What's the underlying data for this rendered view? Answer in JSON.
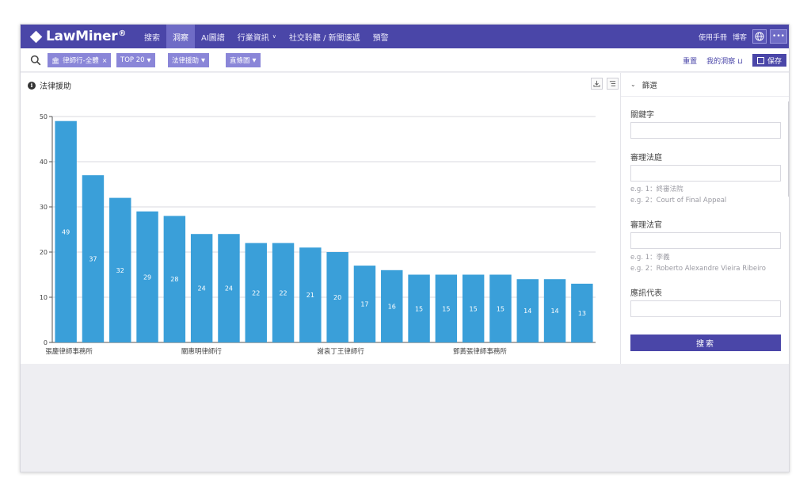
{
  "nav": {
    "brand": "LawMiner",
    "brand_mark": "®",
    "items": [
      {
        "label": "搜索",
        "active": false,
        "caret": false
      },
      {
        "label": "洞察",
        "active": true,
        "caret": false
      },
      {
        "label": "AI圖譜",
        "active": false,
        "caret": false
      },
      {
        "label": "行業資訊",
        "active": false,
        "caret": true
      },
      {
        "label": "社交聆聽 / 新聞速遞",
        "active": false,
        "caret": false
      },
      {
        "label": "預警",
        "active": false,
        "caret": false
      }
    ],
    "manual_label": "使用手冊",
    "user_label": "博客",
    "language_icon": "globe-icon",
    "more_label": "•••"
  },
  "filters": {
    "search_icon": "search-icon",
    "chips": [
      {
        "icon": "building-icon",
        "label": "律師行-全體",
        "removable": true
      },
      {
        "label": "TOP 20",
        "dropdown": true
      },
      {
        "label": "法律援助",
        "dropdown": true
      },
      {
        "label": "直條圖",
        "dropdown": true
      }
    ],
    "reset_label": "重置",
    "my_insights_label": "我的洞察",
    "save_label": "保存"
  },
  "panel": {
    "title": "法律援助",
    "info_icon": "info-icon",
    "download_icon": "download-icon",
    "list_icon": "list-icon"
  },
  "chart_data": {
    "type": "bar",
    "title": "",
    "categories": [
      "張慶律師事務所",
      "",
      "",
      "",
      "",
      "關惠明律師行",
      "",
      "",
      "",
      "",
      "謝袁丁王律師行",
      "",
      "",
      "",
      "",
      "鄧黃張律師事務所",
      "",
      "",
      "",
      ""
    ],
    "values": [
      49,
      37,
      32,
      29,
      28,
      24,
      24,
      22,
      22,
      21,
      20,
      17,
      16,
      15,
      15,
      15,
      15,
      14,
      14,
      13
    ],
    "yticks": [
      0,
      10,
      20,
      30,
      40,
      50
    ],
    "ylim": [
      0,
      50
    ],
    "grid": true,
    "bar_color": "#3a9fd9",
    "label_color": "#ffffff"
  },
  "sidebar": {
    "header": "篩選",
    "fields": [
      {
        "label": "關鍵字",
        "hints": []
      },
      {
        "label": "審理法庭",
        "hints": [
          "e.g. 1：終審法院",
          "e.g. 2：Court of Final Appeal"
        ]
      },
      {
        "label": "審理法官",
        "hints": [
          "e.g. 1：李義",
          "e.g. 2：Roberto Alexandre Vieira Ribeiro"
        ]
      },
      {
        "label": "應訊代表",
        "hints": []
      }
    ],
    "search_label": "搜索"
  }
}
